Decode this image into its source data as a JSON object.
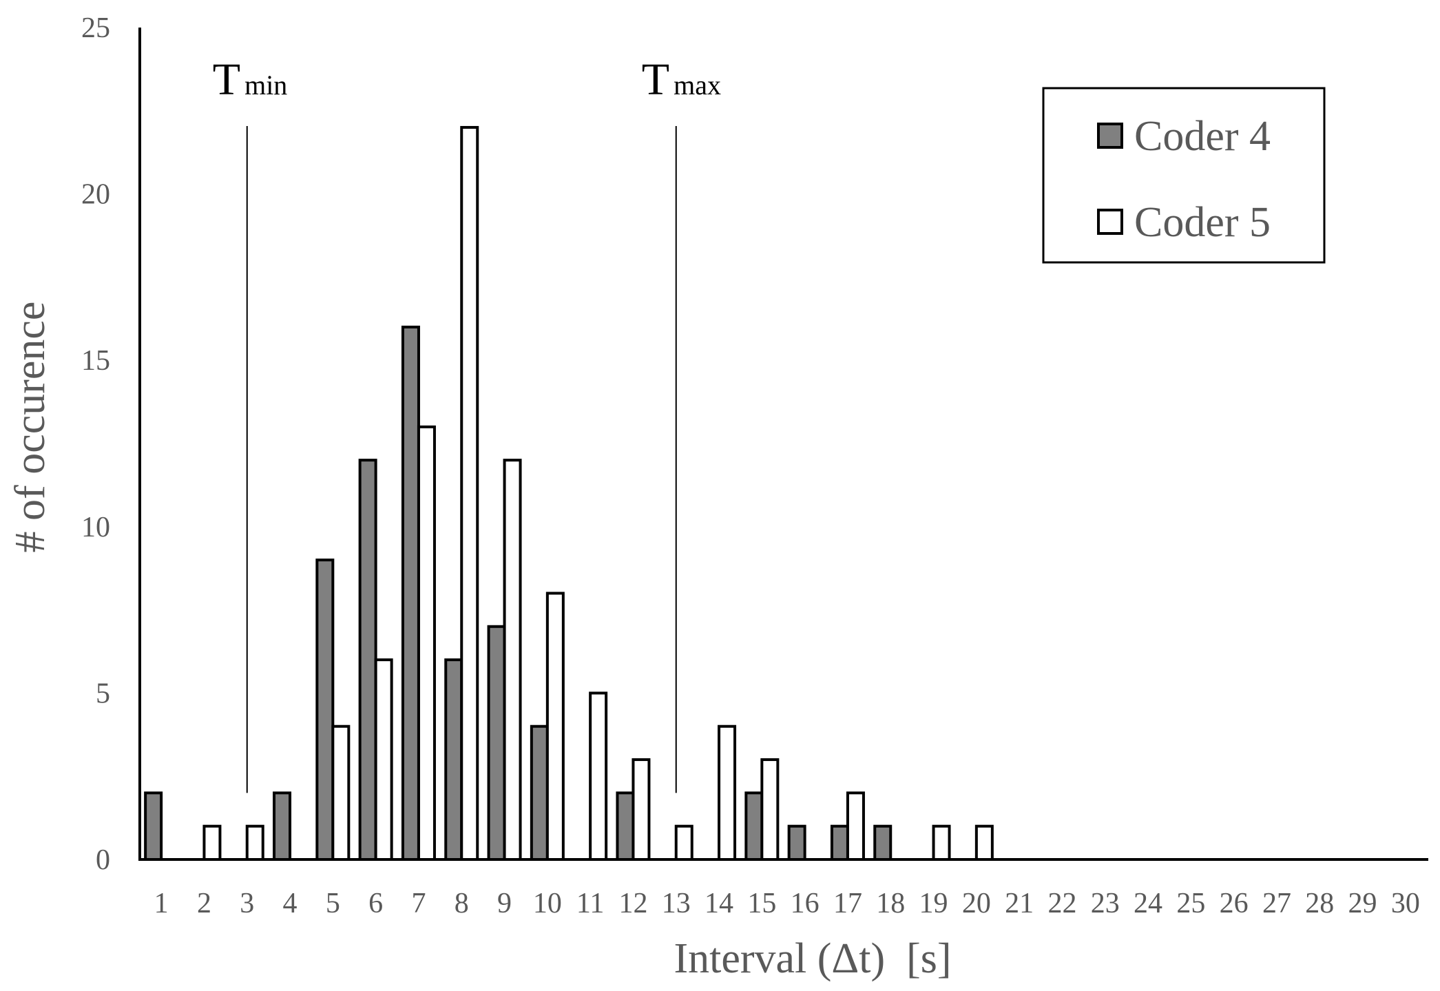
{
  "chart_data": {
    "type": "bar",
    "xlabel": "Interval (Δt)  [s]",
    "ylabel": "# of occurence",
    "ylim": [
      0,
      25
    ],
    "yticks": [
      0,
      5,
      10,
      15,
      20,
      25
    ],
    "categories": [
      "1",
      "2",
      "3",
      "4",
      "5",
      "6",
      "7",
      "8",
      "9",
      "10",
      "11",
      "12",
      "13",
      "14",
      "15",
      "16",
      "17",
      "18",
      "19",
      "20",
      "21",
      "22",
      "23",
      "24",
      "25",
      "26",
      "27",
      "28",
      "29",
      "30"
    ],
    "series": [
      {
        "name": "Coder 4",
        "color": "#808080",
        "values": [
          2,
          0,
          0,
          2,
          9,
          12,
          16,
          6,
          7,
          4,
          0,
          2,
          0,
          0,
          2,
          1,
          1,
          1,
          0,
          0,
          0,
          0,
          0,
          0,
          0,
          0,
          0,
          0,
          0,
          0
        ]
      },
      {
        "name": "Coder 5",
        "color": "#ffffff",
        "values": [
          0,
          1,
          1,
          0,
          4,
          6,
          13,
          22,
          12,
          8,
          5,
          3,
          1,
          4,
          3,
          0,
          2,
          0,
          1,
          1,
          0,
          0,
          0,
          0,
          0,
          0,
          0,
          0,
          0,
          0
        ]
      }
    ],
    "legend": {
      "placement": "top-right",
      "items": [
        "Coder 4",
        "Coder 5"
      ]
    },
    "annotations": [
      {
        "label": "T",
        "subscript": "min",
        "x": 3,
        "y": 2
      },
      {
        "label": "T",
        "subscript": "max",
        "x": 13,
        "y": 2
      }
    ],
    "grid": false
  }
}
